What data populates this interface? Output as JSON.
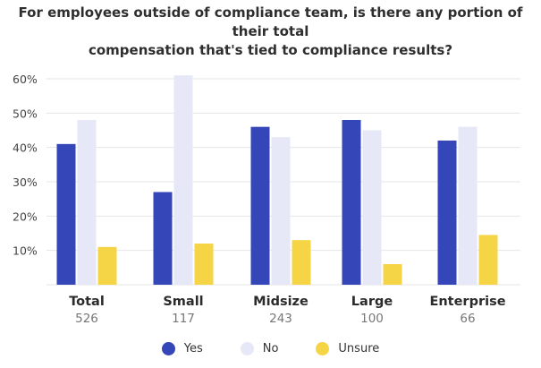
{
  "chart_data": {
    "type": "bar",
    "title_lines": [
      "For employees outside of compliance team, is there any portion of their total",
      "compensation that's tied to compliance results?"
    ],
    "categories": [
      "Total",
      "Small",
      "Midsize",
      "Large",
      "Enterprise"
    ],
    "category_counts": [
      "526",
      "117",
      "243",
      "100",
      "66"
    ],
    "series": [
      {
        "name": "Yes",
        "color": "#3446b8",
        "values": [
          41,
          27,
          46,
          48,
          42
        ]
      },
      {
        "name": "No",
        "color": "#e6e8f7",
        "values": [
          48,
          61,
          43,
          45,
          46
        ]
      },
      {
        "name": "Unsure",
        "color": "#f5d545",
        "values": [
          11,
          12,
          13,
          6,
          14.5
        ]
      }
    ],
    "yticks": [
      "10%",
      "20%",
      "30%",
      "40%",
      "50%",
      "60%"
    ],
    "ylim": [
      0,
      60
    ],
    "grid": true,
    "legend_position": "bottom"
  }
}
